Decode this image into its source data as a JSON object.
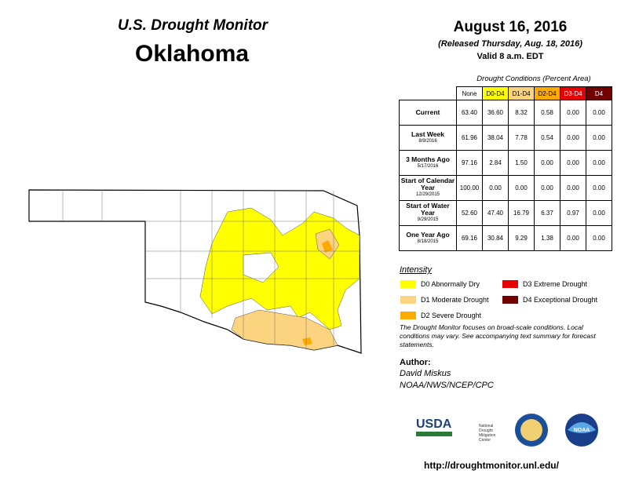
{
  "header": {
    "program": "U.S. Drought Monitor",
    "state": "Oklahoma",
    "date": "August 16, 2016",
    "released": "(Released Thursday, Aug. 18, 2016)",
    "valid": "Valid 8 a.m. EDT"
  },
  "table": {
    "caption": "Drought Conditions (Percent Area)",
    "columns": [
      {
        "label": "None",
        "color": "#ffffff",
        "text_color": "#000000"
      },
      {
        "label": "D0-D4",
        "color": "#ffff00",
        "text_color": "#000000"
      },
      {
        "label": "D1-D4",
        "color": "#fcd37f",
        "text_color": "#000000"
      },
      {
        "label": "D2-D4",
        "color": "#ffaa00",
        "text_color": "#000000"
      },
      {
        "label": "D3-D4",
        "color": "#e60000",
        "text_color": "#ffffff"
      },
      {
        "label": "D4",
        "color": "#730000",
        "text_color": "#ffffff"
      }
    ],
    "rows": [
      {
        "label": "Current",
        "values": [
          "63.40",
          "36.60",
          "8.32",
          "0.58",
          "0.00",
          "0.00"
        ]
      },
      {
        "label": "Last Week",
        "date": "8/9/2016",
        "values": [
          "61.96",
          "38.04",
          "7.78",
          "0.54",
          "0.00",
          "0.00"
        ]
      },
      {
        "label": "3 Months Ago",
        "date": "5/17/2016",
        "values": [
          "97.16",
          "2.84",
          "1.50",
          "0.00",
          "0.00",
          "0.00"
        ]
      },
      {
        "label": "Start of Calendar Year",
        "date": "12/29/2015",
        "values": [
          "100.00",
          "0.00",
          "0.00",
          "0.00",
          "0.00",
          "0.00"
        ]
      },
      {
        "label": "Start of Water Year",
        "date": "9/29/2015",
        "values": [
          "52.60",
          "47.40",
          "16.79",
          "6.37",
          "0.97",
          "0.00"
        ]
      },
      {
        "label": "One Year Ago",
        "date": "8/18/2015",
        "values": [
          "69.16",
          "30.84",
          "9.29",
          "1.38",
          "0.00",
          "0.00"
        ]
      }
    ]
  },
  "legend": {
    "title": "Intensity",
    "items": [
      {
        "label": "D0 Abnormally Dry",
        "color": "#ffff00"
      },
      {
        "label": "D1 Moderate Drought",
        "color": "#fcd37f"
      },
      {
        "label": "D2 Severe Drought",
        "color": "#ffaa00"
      },
      {
        "label": "D3 Extreme Drought",
        "color": "#e60000"
      },
      {
        "label": "D4 Exceptional Drought",
        "color": "#730000"
      }
    ]
  },
  "note": "The Drought Monitor focuses on broad-scale conditions. Local conditions may vary. See accompanying text summary for forecast statements.",
  "author": {
    "heading": "Author:",
    "name": "David Miskus",
    "agency": "NOAA/NWS/NCEP/CPC"
  },
  "logos": {
    "usda": "USDA",
    "ndmc": "National Drought Mitigation Center",
    "noaa": "NOAA"
  },
  "url": "http://droughtmonitor.unl.edu/"
}
